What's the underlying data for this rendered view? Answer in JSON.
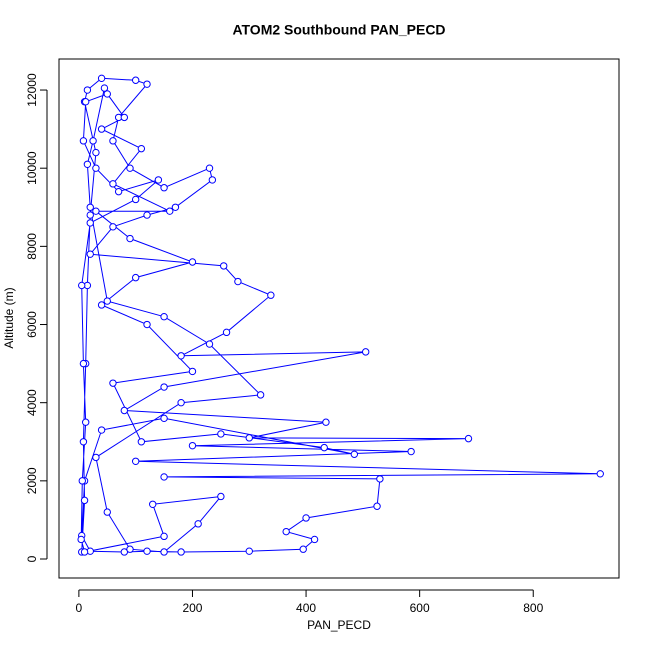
{
  "chart_data": {
    "type": "line",
    "title": "ATOM2 Southbound PAN_PECD",
    "x_label": "PAN_PECD",
    "y_label": "Altitude (m)",
    "color": "#0000ff",
    "markers": "circle",
    "xlim": [
      -35,
      951
    ],
    "ylim": [
      -486,
      12794
    ],
    "xticks": [
      0,
      200,
      400,
      600,
      800
    ],
    "yticks": [
      0,
      2000,
      4000,
      6000,
      8000,
      10000,
      12000
    ],
    "x": [
      5,
      10,
      8,
      12,
      15,
      20,
      30,
      10,
      15,
      40,
      100,
      120,
      70,
      60,
      90,
      150,
      230,
      235,
      170,
      120,
      60,
      20,
      255,
      280,
      338,
      260,
      180,
      505,
      150,
      80,
      435,
      300,
      686,
      200,
      585,
      100,
      918,
      150,
      530,
      525,
      400,
      365,
      415,
      395,
      300,
      180,
      120,
      80,
      20,
      5,
      10,
      40,
      150,
      485,
      432,
      250,
      110,
      60,
      200,
      120,
      40,
      100,
      200,
      90,
      30,
      160,
      60,
      110,
      40,
      80,
      50,
      12,
      8,
      30,
      70,
      140,
      100,
      20,
      5,
      8,
      12,
      6,
      4,
      10,
      150,
      130,
      250,
      210,
      150,
      90,
      50,
      30,
      180,
      320,
      230,
      150,
      50,
      20,
      15,
      25,
      45
    ],
    "values": [
      180,
      1500,
      3000,
      5000,
      7000,
      8800,
      10400,
      11700,
      12000,
      12300,
      12250,
      12150,
      11300,
      10700,
      10000,
      9500,
      10000,
      9700,
      9000,
      8800,
      8500,
      7800,
      7500,
      7100,
      6750,
      5800,
      5200,
      5300,
      4400,
      3800,
      3500,
      3100,
      3080,
      2900,
      2750,
      2500,
      2180,
      2100,
      2050,
      1350,
      1050,
      700,
      500,
      250,
      200,
      180,
      200,
      180,
      200,
      600,
      2000,
      3300,
      3600,
      2680,
      2850,
      3200,
      3000,
      4500,
      4800,
      6000,
      6500,
      7200,
      7600,
      8200,
      8900,
      8900,
      9600,
      10500,
      11000,
      11300,
      11900,
      11700,
      10700,
      10000,
      9400,
      9700,
      9200,
      8600,
      7000,
      5000,
      3500,
      2000,
      500,
      180,
      580,
      1400,
      1600,
      900,
      180,
      250,
      1200,
      2600,
      4000,
      4200,
      5500,
      6200,
      6600,
      9000,
      10100,
      10700,
      12050
    ]
  }
}
